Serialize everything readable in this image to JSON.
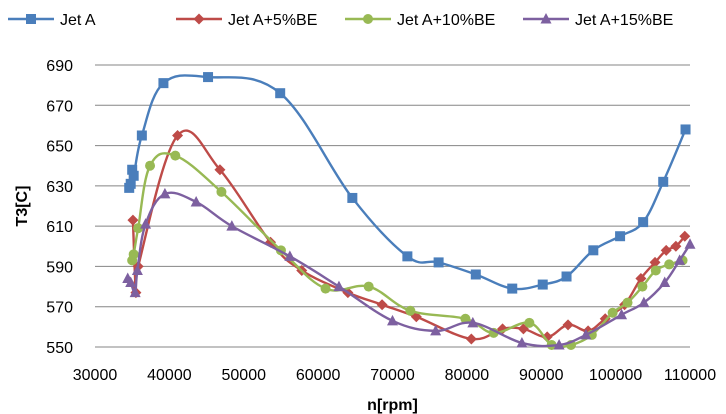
{
  "chart_data": {
    "type": "line",
    "title": "",
    "xlabel": "n[rpm]",
    "ylabel": "T3[C]",
    "xlim": [
      30000,
      110000
    ],
    "ylim": [
      550,
      690
    ],
    "xticks": [
      30000,
      40000,
      50000,
      60000,
      70000,
      80000,
      90000,
      100000,
      110000
    ],
    "yticks": [
      550,
      570,
      590,
      610,
      630,
      650,
      670,
      690
    ],
    "x_tick_labels": [
      "30000",
      "40000",
      "50000",
      "60000",
      "70000",
      "80000",
      "90000",
      "100000",
      "110000"
    ],
    "y_tick_labels": [
      "550",
      "570",
      "590",
      "610",
      "630",
      "650",
      "670",
      "690"
    ],
    "grid": "horizontal",
    "legend_position": "top",
    "series": [
      {
        "name": "Jet A",
        "color": "#4a7ebb",
        "marker": "square",
        "points": [
          [
            34600,
            629
          ],
          [
            34800,
            631
          ],
          [
            35000,
            638
          ],
          [
            35200,
            635
          ],
          [
            36300,
            655
          ],
          [
            39200,
            681
          ],
          [
            45200,
            684
          ],
          [
            54900,
            676
          ],
          [
            64600,
            624
          ],
          [
            72000,
            595
          ],
          [
            76200,
            592
          ],
          [
            81200,
            586
          ],
          [
            86100,
            579
          ],
          [
            90200,
            581
          ],
          [
            93400,
            585
          ],
          [
            97000,
            598
          ],
          [
            100600,
            605
          ],
          [
            103700,
            612
          ],
          [
            106400,
            632
          ],
          [
            109400,
            658
          ]
        ]
      },
      {
        "name": "Jet A+5%BE",
        "color": "#be4b48",
        "marker": "diamond",
        "points": [
          [
            35100,
            613
          ],
          [
            35500,
            577
          ],
          [
            35800,
            590
          ],
          [
            41100,
            655
          ],
          [
            46800,
            638
          ],
          [
            53600,
            602
          ],
          [
            57800,
            588
          ],
          [
            64000,
            577
          ],
          [
            68600,
            571
          ],
          [
            73200,
            565
          ],
          [
            80600,
            554
          ],
          [
            84800,
            559
          ],
          [
            87600,
            559
          ],
          [
            90800,
            555
          ],
          [
            93600,
            561
          ],
          [
            96300,
            558
          ],
          [
            98600,
            564
          ],
          [
            101200,
            571
          ],
          [
            103400,
            584
          ],
          [
            105300,
            592
          ],
          [
            106800,
            598
          ],
          [
            108100,
            600
          ],
          [
            109300,
            605
          ]
        ]
      },
      {
        "name": "Jet A+10%BE",
        "color": "#98b954",
        "marker": "circle",
        "points": [
          [
            35000,
            593
          ],
          [
            35200,
            596
          ],
          [
            35800,
            609
          ],
          [
            37400,
            640
          ],
          [
            40800,
            645
          ],
          [
            47000,
            627
          ],
          [
            55000,
            598
          ],
          [
            61000,
            579
          ],
          [
            66800,
            580
          ],
          [
            72400,
            568
          ],
          [
            79800,
            564
          ],
          [
            83600,
            557
          ],
          [
            88400,
            562
          ],
          [
            91400,
            551
          ],
          [
            94000,
            551
          ],
          [
            96800,
            556
          ],
          [
            99600,
            567
          ],
          [
            101600,
            572
          ],
          [
            103600,
            580
          ],
          [
            105400,
            588
          ],
          [
            107200,
            591
          ],
          [
            109000,
            593
          ]
        ]
      },
      {
        "name": "Jet A+15%BE",
        "color": "#7d60a0",
        "marker": "triangle",
        "points": [
          [
            34400,
            584
          ],
          [
            34800,
            582
          ],
          [
            35400,
            577
          ],
          [
            35700,
            588
          ],
          [
            36800,
            611
          ],
          [
            39400,
            626
          ],
          [
            43600,
            622
          ],
          [
            48400,
            610
          ],
          [
            56200,
            595
          ],
          [
            62800,
            580
          ],
          [
            70000,
            563
          ],
          [
            75800,
            558
          ],
          [
            80800,
            562
          ],
          [
            87400,
            552
          ],
          [
            92400,
            551
          ],
          [
            96000,
            556
          ],
          [
            100800,
            566
          ],
          [
            103800,
            572
          ],
          [
            106600,
            582
          ],
          [
            108600,
            593
          ],
          [
            110000,
            601
          ]
        ]
      }
    ]
  }
}
